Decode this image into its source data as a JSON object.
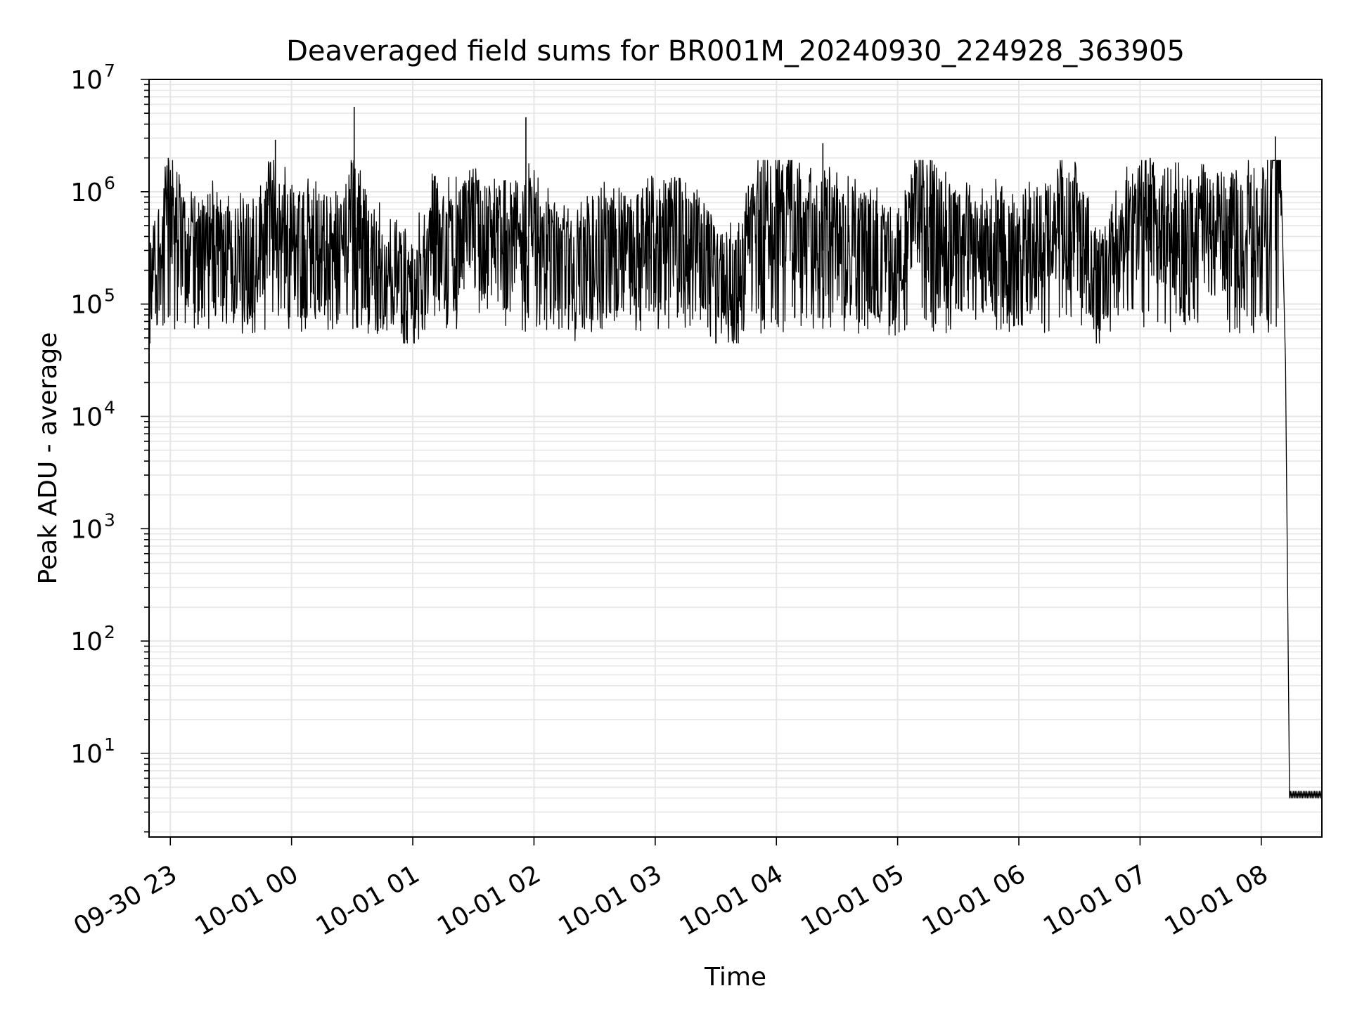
{
  "chart_data": {
    "type": "line",
    "title": "Deaveraged field sums for BR001M_20240930_224928_363905",
    "xlabel": "Time",
    "ylabel": "Peak ADU - average",
    "yscale": "log",
    "ylim": [
      1.8,
      10000000
    ],
    "xlim": [
      "2024-09-30 22:49:28",
      "2024-10-01 08:30:00"
    ],
    "grid": true,
    "legend": "none",
    "line_color": "#000000",
    "grid_color": "#e6e6e6",
    "x_ticks": [
      {
        "time": "2024-09-30 23:00",
        "label": "09-30 23"
      },
      {
        "time": "2024-10-01 00:00",
        "label": "10-01 00"
      },
      {
        "time": "2024-10-01 01:00",
        "label": "10-01 01"
      },
      {
        "time": "2024-10-01 02:00",
        "label": "10-01 02"
      },
      {
        "time": "2024-10-01 03:00",
        "label": "10-01 03"
      },
      {
        "time": "2024-10-01 04:00",
        "label": "10-01 04"
      },
      {
        "time": "2024-10-01 05:00",
        "label": "10-01 05"
      },
      {
        "time": "2024-10-01 06:00",
        "label": "10-01 06"
      },
      {
        "time": "2024-10-01 07:00",
        "label": "10-01 07"
      },
      {
        "time": "2024-10-01 08:00",
        "label": "10-01 08"
      }
    ],
    "y_ticks": [
      {
        "value": 10,
        "base": "10",
        "exp": "1"
      },
      {
        "value": 100,
        "base": "10",
        "exp": "2"
      },
      {
        "value": 1000,
        "base": "10",
        "exp": "3"
      },
      {
        "value": 10000,
        "base": "10",
        "exp": "4"
      },
      {
        "value": 100000,
        "base": "10",
        "exp": "5"
      },
      {
        "value": 1000000,
        "base": "10",
        "exp": "6"
      },
      {
        "value": 10000000,
        "base": "10",
        "exp": "7"
      }
    ],
    "series": [
      {
        "x": [
          "2024-09-30 22:50",
          "2024-09-30 23:00",
          "2024-09-30 23:10",
          "2024-09-30 23:20",
          "2024-09-30 23:30",
          "2024-09-30 23:40",
          "2024-09-30 23:50",
          "2024-10-01 00:00",
          "2024-10-01 00:10",
          "2024-10-01 00:20",
          "2024-10-01 00:30",
          "2024-10-01 00:40",
          "2024-10-01 00:50",
          "2024-10-01 01:00",
          "2024-10-01 01:10",
          "2024-10-01 01:20",
          "2024-10-01 01:30",
          "2024-10-01 01:40",
          "2024-10-01 01:50",
          "2024-10-01 02:00",
          "2024-10-01 02:10",
          "2024-10-01 02:20",
          "2024-10-01 02:30",
          "2024-10-01 02:40",
          "2024-10-01 02:50",
          "2024-10-01 03:00",
          "2024-10-01 03:10",
          "2024-10-01 03:20",
          "2024-10-01 03:30",
          "2024-10-01 03:40",
          "2024-10-01 03:50",
          "2024-10-01 04:00",
          "2024-10-01 04:10",
          "2024-10-01 04:20",
          "2024-10-01 04:30",
          "2024-10-01 04:40",
          "2024-10-01 04:50",
          "2024-10-01 05:00",
          "2024-10-01 05:10",
          "2024-10-01 05:20",
          "2024-10-01 05:30",
          "2024-10-01 05:40",
          "2024-10-01 05:50",
          "2024-10-01 06:00",
          "2024-10-01 06:10",
          "2024-10-01 06:20",
          "2024-10-01 06:30",
          "2024-10-01 06:40",
          "2024-10-01 06:50",
          "2024-10-01 07:00",
          "2024-10-01 07:10",
          "2024-10-01 07:20",
          "2024-10-01 07:30",
          "2024-10-01 07:40",
          "2024-10-01 07:50",
          "2024-10-01 08:00",
          "2024-10-01 08:05",
          "2024-10-01 08:08",
          "2024-10-01 08:10",
          "2024-10-01 08:12",
          "2024-10-01 08:14",
          "2024-10-01 08:20",
          "2024-10-01 08:30"
        ],
        "y": [
          150000,
          700000,
          250000,
          300000,
          200000,
          250000,
          600000,
          350000,
          300000,
          250000,
          500000,
          200000,
          150000,
          100000,
          350000,
          300000,
          400000,
          300000,
          300000,
          450000,
          200000,
          150000,
          300000,
          250000,
          300000,
          350000,
          400000,
          300000,
          150000,
          120000,
          500000,
          600000,
          500000,
          450000,
          350000,
          300000,
          250000,
          150000,
          700000,
          400000,
          300000,
          250000,
          300000,
          200000,
          400000,
          500000,
          400000,
          120000,
          300000,
          600000,
          500000,
          400000,
          450000,
          400000,
          450000,
          500000,
          1000000,
          2000000,
          1000000,
          30000,
          4,
          4,
          4
        ]
      }
    ],
    "spikes": [
      {
        "x": "2024-09-30 22:59",
        "y": 2000000
      },
      {
        "x": "2024-09-30 23:52",
        "y": 2900000
      },
      {
        "x": "2024-10-01 00:31",
        "y": 5700000
      },
      {
        "x": "2024-10-01 01:56",
        "y": 4600000
      },
      {
        "x": "2024-10-01 04:23",
        "y": 2700000
      },
      {
        "x": "2024-10-01 05:17",
        "y": 1900000
      },
      {
        "x": "2024-10-01 07:05",
        "y": 2000000
      },
      {
        "x": "2024-10-01 08:07",
        "y": 3100000
      }
    ]
  }
}
